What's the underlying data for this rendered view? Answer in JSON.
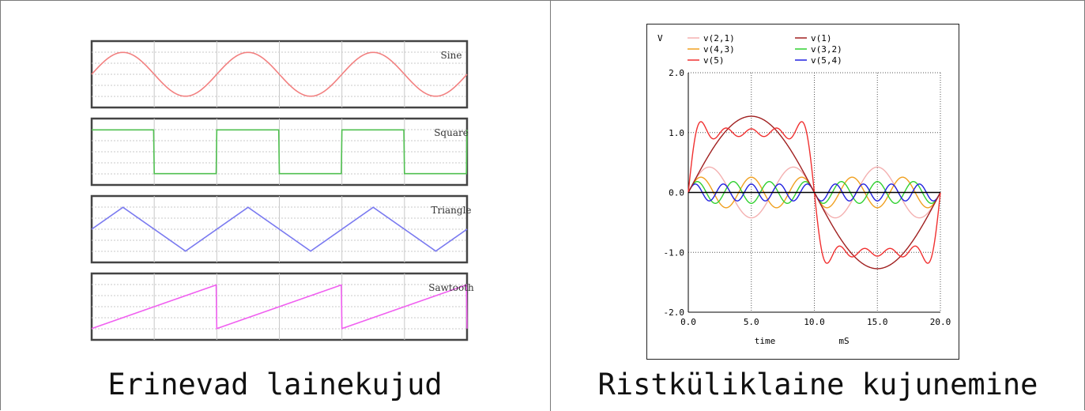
{
  "captions": {
    "left": "Erinevad lainekujud",
    "right": "Ristküliklaine kujunemine"
  },
  "chart_data": [
    {
      "type": "line",
      "panels": [
        {
          "name": "Sine",
          "shape": "sine",
          "color": "#f28080",
          "cycles": 3
        },
        {
          "name": "Square",
          "shape": "square",
          "color": "#50c050",
          "cycles": 3
        },
        {
          "name": "Triangle",
          "shape": "triangle",
          "color": "#7a7af0",
          "cycles": 3
        },
        {
          "name": "Sawtooth",
          "shape": "sawtooth",
          "color": "#f060f0",
          "cycles": 3
        }
      ]
    },
    {
      "type": "line",
      "ylabel": "V",
      "xlabel": "time",
      "xunit": "mS",
      "xlim": [
        0,
        20
      ],
      "ylim": [
        -2,
        2
      ],
      "x_ticks": [
        "0.0",
        "5.0",
        "10.0",
        "15.0",
        "20.0"
      ],
      "y_ticks": [
        "2.0",
        "1.0",
        "0.0",
        "-1.0",
        "-2.0"
      ],
      "grid": true,
      "legend_position": "top",
      "period_ms": 20,
      "series": [
        {
          "name": "v(2,1)",
          "color": "#f4b0b0",
          "harmonic": 3,
          "amplitude": 0.424
        },
        {
          "name": "v(1)",
          "color": "#a02020",
          "harmonic": 1,
          "amplitude": 1.273
        },
        {
          "name": "v(4,3)",
          "color": "#f0a020",
          "harmonic": 5,
          "amplitude": 0.255
        },
        {
          "name": "v(3,2)",
          "color": "#30d030",
          "harmonic": 7,
          "amplitude": 0.182
        },
        {
          "name": "v(5)",
          "color": "#f03030",
          "harmonic": "sum",
          "amplitude": 1.0
        },
        {
          "name": "v(5,4)",
          "color": "#2020e0",
          "harmonic": 9,
          "amplitude": 0.141
        }
      ]
    }
  ]
}
